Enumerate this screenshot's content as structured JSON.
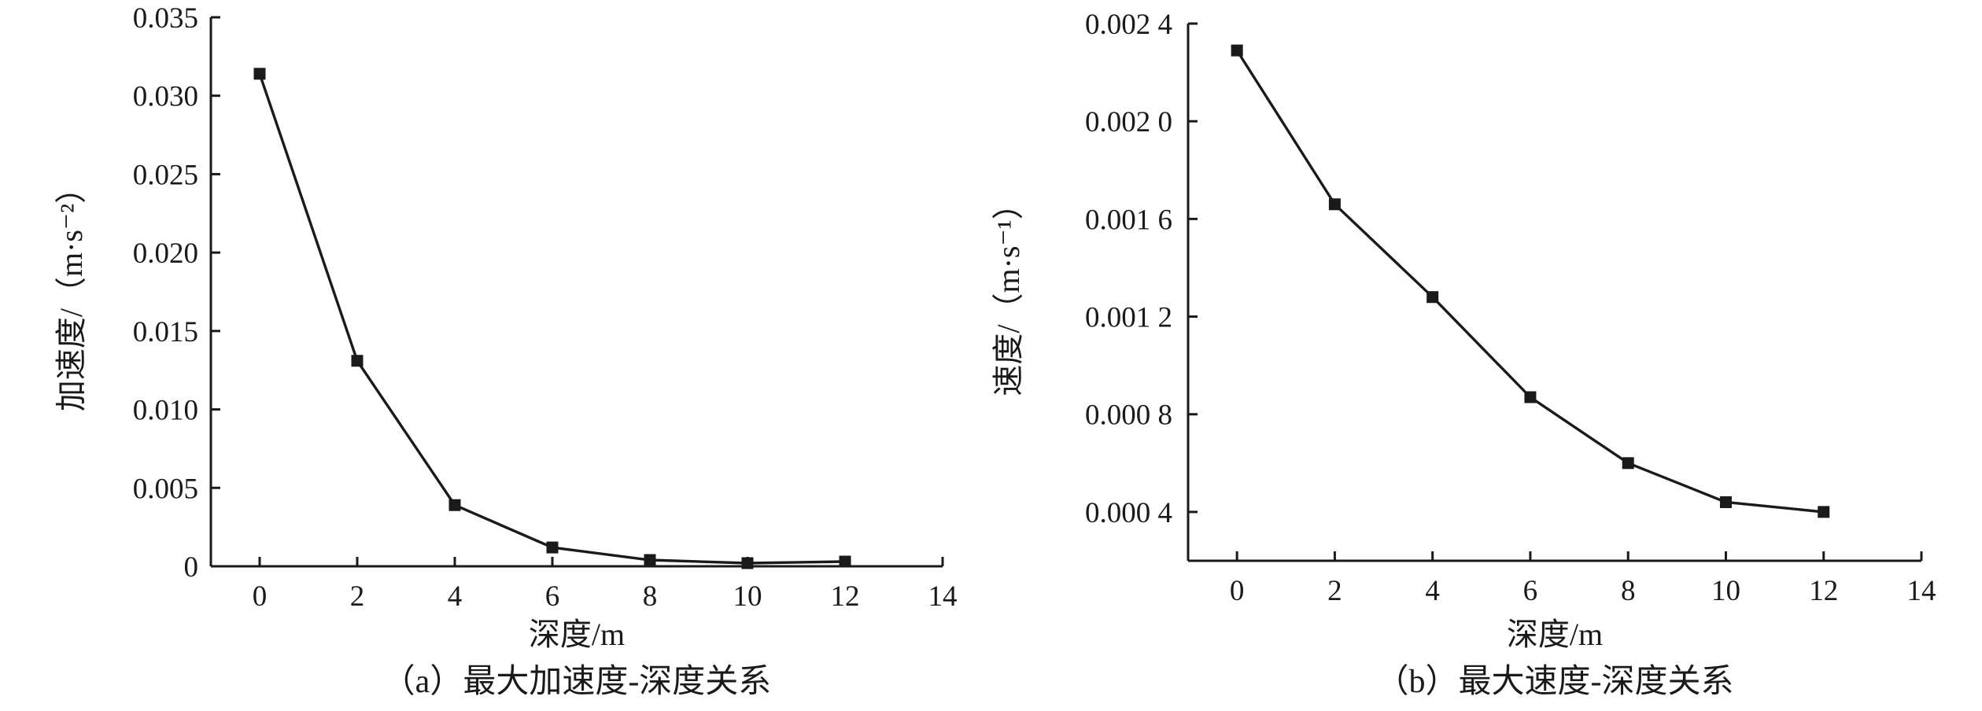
{
  "chart_data": [
    {
      "type": "line",
      "xlabel": "深度/m",
      "ylabel": "加速度/（m·s⁻²）",
      "caption": "（a）最大加速度-深度关系",
      "xlim": [
        -1,
        14
      ],
      "ylim": [
        0,
        0.035
      ],
      "xticks": [
        0,
        2,
        4,
        6,
        8,
        10,
        12,
        14
      ],
      "yticks": [
        0,
        0.005,
        0.01,
        0.015,
        0.02,
        0.025,
        0.03,
        0.035
      ],
      "xtick_labels": [
        "0",
        "2",
        "4",
        "6",
        "8",
        "10",
        "12",
        "14"
      ],
      "ytick_labels": [
        "0",
        "0.005",
        "0.010",
        "0.015",
        "0.020",
        "0.025",
        "0.030",
        "0.035"
      ],
      "grid": false,
      "marker": "square",
      "x": [
        0,
        2,
        4,
        6,
        8,
        10,
        12
      ],
      "series": [
        {
          "values": [
            0.0314,
            0.0131,
            0.0039,
            0.0012,
            0.0004,
            0.0002,
            0.0003
          ]
        }
      ]
    },
    {
      "type": "line",
      "xlabel": "深度/m",
      "ylabel": "速度/（m·s⁻¹）",
      "caption": "（b）最大速度-深度关系",
      "xlim": [
        -1,
        14
      ],
      "ylim": [
        0.0002,
        0.0024
      ],
      "xticks": [
        0,
        2,
        4,
        6,
        8,
        10,
        12,
        14
      ],
      "yticks": [
        0.0004,
        0.0008,
        0.0012,
        0.0016,
        0.002,
        0.0024
      ],
      "xtick_labels": [
        "0",
        "2",
        "4",
        "6",
        "8",
        "10",
        "12",
        "14"
      ],
      "ytick_labels": [
        "0.000 4",
        "0.000 8",
        "0.001 2",
        "0.001 6",
        "0.002 0",
        "0.002 4"
      ],
      "grid": false,
      "marker": "square",
      "x": [
        0,
        2,
        4,
        6,
        8,
        10,
        12
      ],
      "series": [
        {
          "values": [
            0.00229,
            0.00166,
            0.00128,
            0.00087,
            0.0006,
            0.00044,
            0.0004
          ]
        }
      ]
    }
  ]
}
